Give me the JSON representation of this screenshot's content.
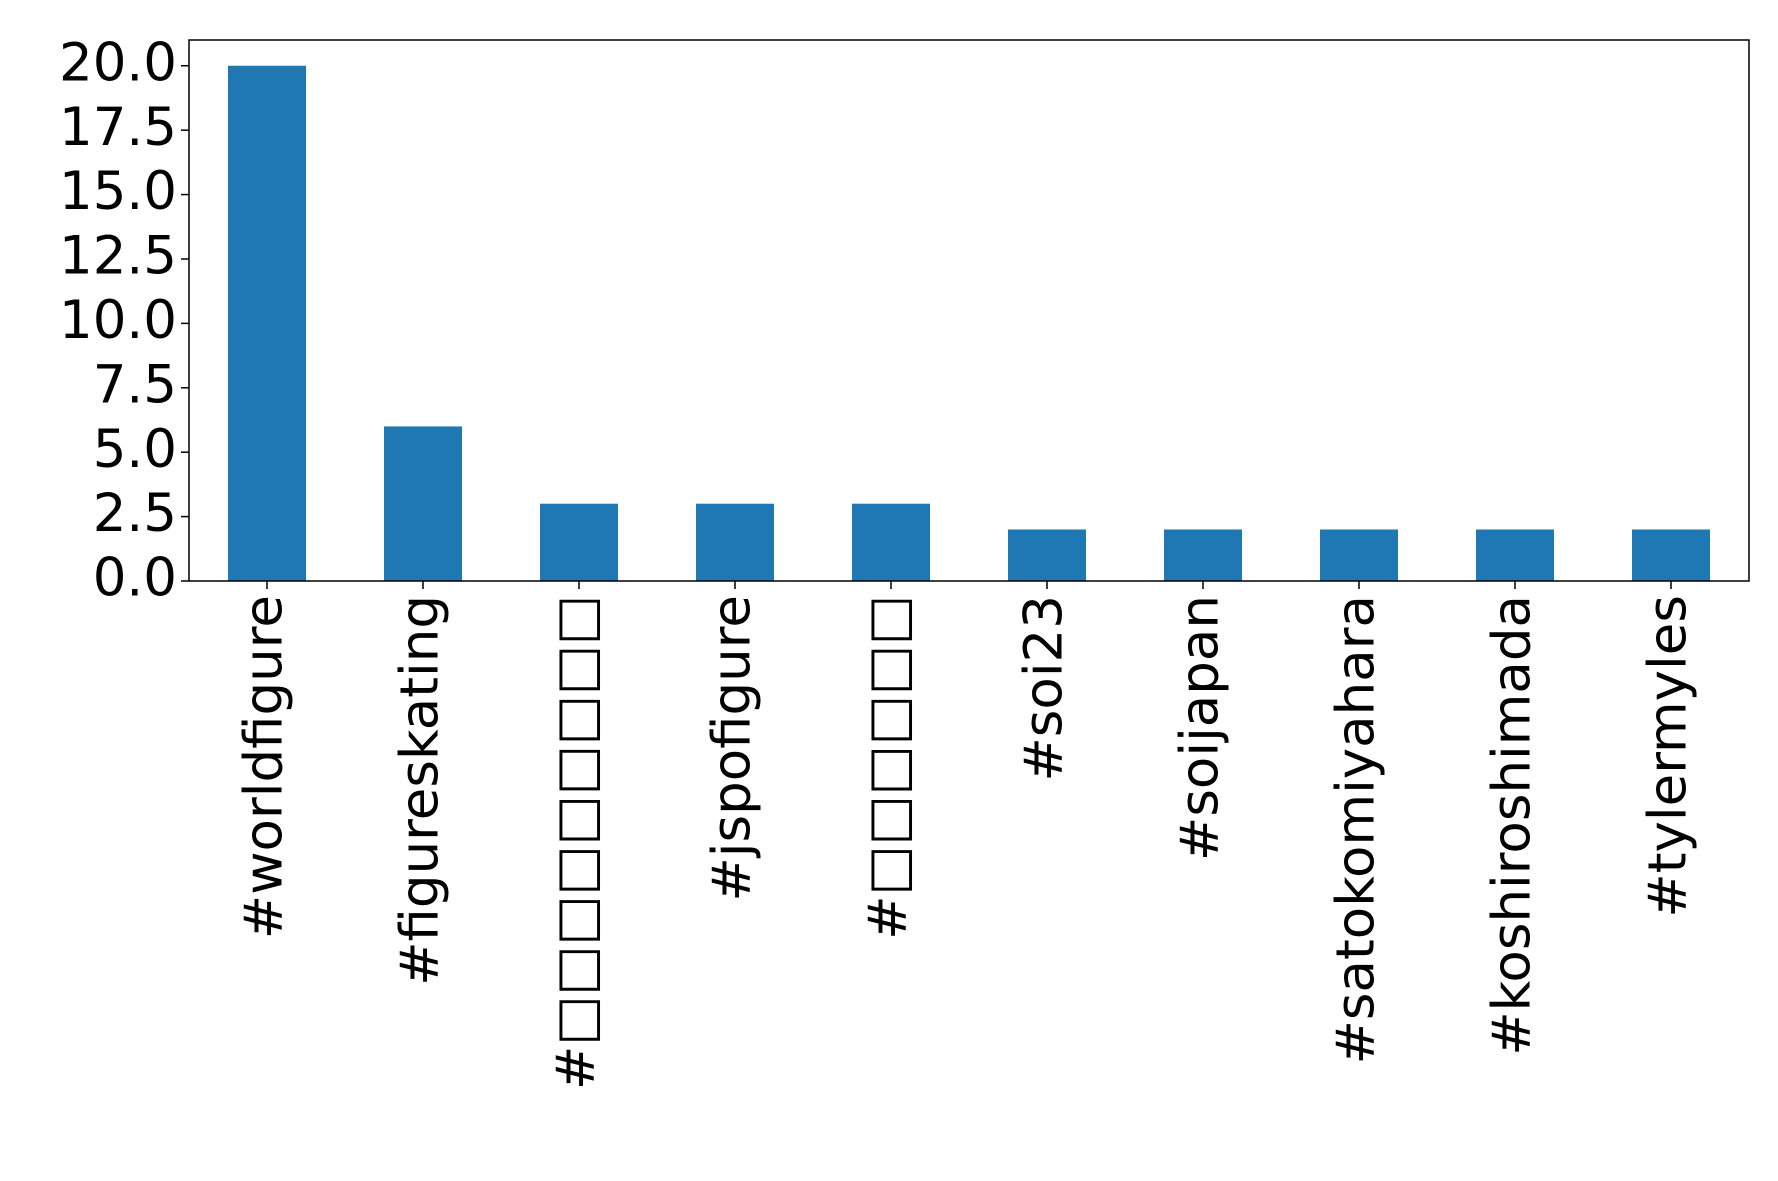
{
  "chart_data": {
    "type": "bar",
    "categories": [
      "#worldfigure",
      "#figureskating",
      "#□□□□□□□□□",
      "#jspofigure",
      "#□□□□□□",
      "#soi23",
      "#soijapan",
      "#satokomiyahara",
      "#koshiroshimada",
      "#tylermyles"
    ],
    "values": [
      20,
      6,
      3,
      3,
      3,
      2,
      2,
      2,
      2,
      2
    ],
    "color": "#1f77b4",
    "ylim": [
      0,
      21
    ],
    "yticks": [
      {
        "value": 0,
        "label": "0.0"
      },
      2.5,
      {
        "value": 5,
        "label": "5.0"
      },
      7.5,
      {
        "value": 10,
        "label": "10.0"
      },
      12.5,
      {
        "value": 15,
        "label": "15.0"
      },
      17.5,
      {
        "value": 20,
        "label": "20.0"
      }
    ],
    "grid": false
  }
}
